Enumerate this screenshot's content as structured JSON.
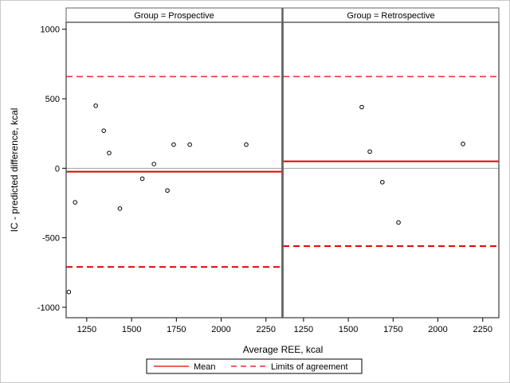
{
  "chart_data": {
    "type": "scatter",
    "ylabel": "IC - predicted difference, kcal",
    "xlabel": "Average REE, kcal",
    "xlim": [
      1135,
      2340
    ],
    "ylim": [
      -1075,
      1050
    ],
    "x_ticks": [
      1250,
      1500,
      1750,
      2000,
      2250
    ],
    "y_ticks": [
      -1000,
      -500,
      0,
      500,
      1000
    ],
    "reference_line_y": 0,
    "legend": {
      "placement": "bottom-center",
      "entries": [
        {
          "label": "Mean",
          "style": "solid",
          "color": "#e00000"
        },
        {
          "label": "Limits of agreement",
          "style": "dashed",
          "color": "#e00000"
        }
      ]
    },
    "panels": [
      {
        "title": "Group = Prospective",
        "mean": -25,
        "limits": [
          -710,
          660
        ],
        "points": [
          {
            "x": 1150,
            "y": -890
          },
          {
            "x": 1185,
            "y": -245
          },
          {
            "x": 1300,
            "y": 450
          },
          {
            "x": 1345,
            "y": 270
          },
          {
            "x": 1375,
            "y": 110
          },
          {
            "x": 1435,
            "y": -290
          },
          {
            "x": 1560,
            "y": -75
          },
          {
            "x": 1625,
            "y": 30
          },
          {
            "x": 1700,
            "y": -160
          },
          {
            "x": 1735,
            "y": 170
          },
          {
            "x": 1825,
            "y": 170
          },
          {
            "x": 2140,
            "y": 170
          }
        ]
      },
      {
        "title": "Group = Retrospective",
        "mean": 50,
        "limits": [
          -560,
          660
        ],
        "points": [
          {
            "x": 1575,
            "y": 440
          },
          {
            "x": 1620,
            "y": 120
          },
          {
            "x": 1690,
            "y": -100
          },
          {
            "x": 1780,
            "y": -390
          },
          {
            "x": 2140,
            "y": 175
          }
        ]
      }
    ]
  },
  "colors": {
    "mean": "#e00000",
    "limits": "#e00000",
    "reference": "#a0a0a0",
    "panel_border": "#606060",
    "marker": "#000000"
  }
}
